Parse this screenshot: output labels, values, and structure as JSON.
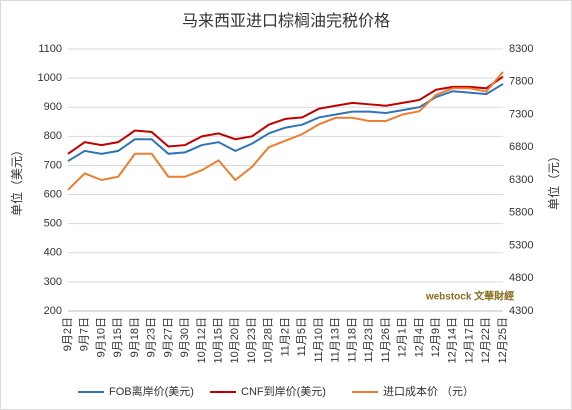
{
  "chart_data": {
    "type": "line",
    "title": "马来西亚进口棕榈油完税价格",
    "ylabel": "单位（美元）",
    "y2label": "单位（元）",
    "watermark": "webstock 文華財經",
    "categories": [
      "9月2日",
      "9月7日",
      "9月10日",
      "9月15日",
      "9月18日",
      "9月23日",
      "9月27日",
      "9月30日",
      "10月12日",
      "10月15日",
      "10月20日",
      "10月23日",
      "10月28日",
      "11月2日",
      "11月5日",
      "11月10日",
      "11月13日",
      "11月18日",
      "11月23日",
      "11月26日",
      "12月1日",
      "12月4日",
      "12月9日",
      "12月14日",
      "12月17日",
      "12月22日",
      "12月25日"
    ],
    "series": [
      {
        "name": "FOB离岸价(美元)",
        "color": "#2e75b6",
        "values": [
          715,
          750,
          740,
          750,
          790,
          790,
          740,
          745,
          770,
          780,
          750,
          775,
          810,
          830,
          840,
          865,
          875,
          885,
          885,
          880,
          890,
          900,
          935,
          955,
          950,
          945,
          980
        ]
      },
      {
        "name": "CNF到岸价(美元)",
        "color": "#c00000",
        "values": [
          740,
          780,
          770,
          780,
          820,
          815,
          765,
          770,
          800,
          810,
          790,
          800,
          840,
          860,
          865,
          895,
          905,
          915,
          910,
          905,
          915,
          925,
          960,
          970,
          970,
          965,
          1005
        ]
      },
      {
        "name": "进口成本价 （元）",
        "color": "#ed7d31",
        "axis": "y2",
        "values": [
          6150,
          6400,
          6300,
          6350,
          6700,
          6700,
          6350,
          6350,
          6450,
          6600,
          6300,
          6500,
          6800,
          6900,
          7000,
          7150,
          7250,
          7250,
          7200,
          7200,
          7300,
          7350,
          7600,
          7700,
          7700,
          7650,
          7950
        ]
      }
    ],
    "ylim": [
      200,
      1100
    ],
    "yticks": [
      200,
      300,
      400,
      500,
      600,
      700,
      800,
      900,
      1000,
      1100
    ],
    "y2lim": [
      4300,
      8300
    ],
    "y2ticks": [
      4300,
      4800,
      5300,
      5800,
      6300,
      6800,
      7300,
      7800,
      8300
    ],
    "grid": true,
    "legend": "bottom"
  }
}
